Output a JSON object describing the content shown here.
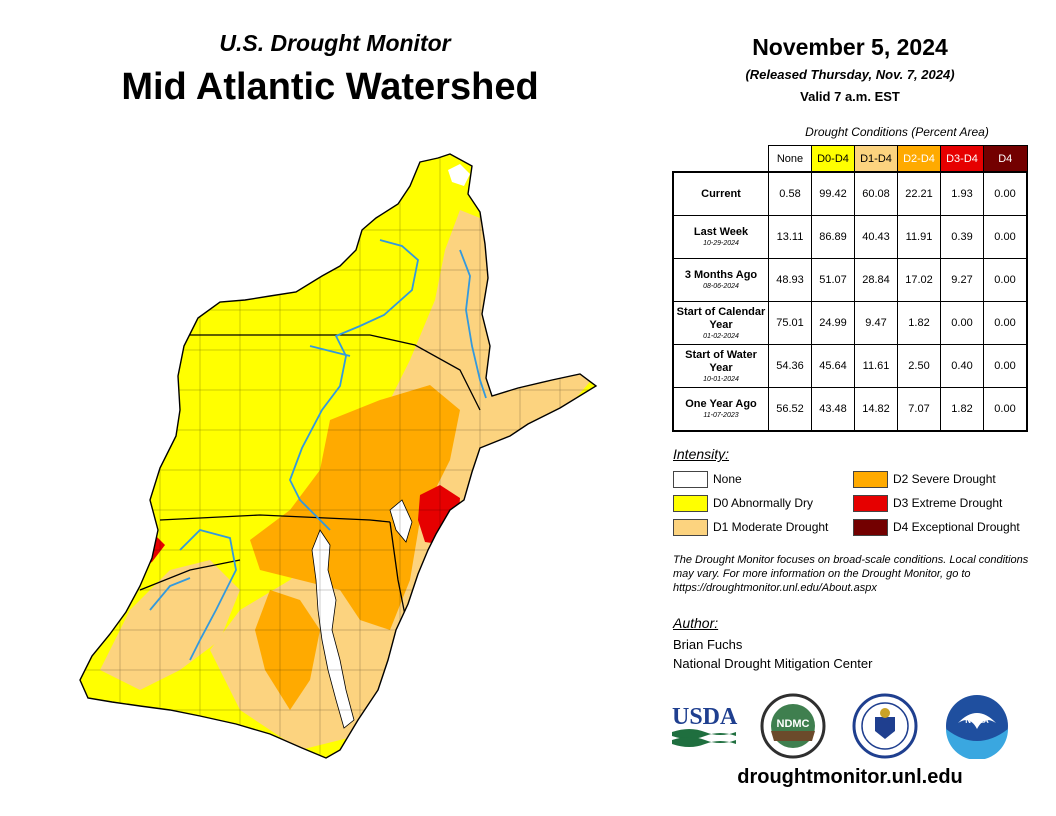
{
  "header": {
    "subtitle": "U.S. Drought Monitor",
    "title": "Mid Atlantic Watershed"
  },
  "date": "November 5, 2024",
  "released": "(Released Thursday, Nov. 7, 2024)",
  "valid": "Valid 7 a.m. EST",
  "conditions_caption": "Drought Conditions (Percent Area)",
  "columns": [
    {
      "label": "None",
      "bg": "#ffffff",
      "fg": "#000000"
    },
    {
      "label": "D0-D4",
      "bg": "#ffff00",
      "fg": "#000000"
    },
    {
      "label": "D1-D4",
      "bg": "#fcd37f",
      "fg": "#000000"
    },
    {
      "label": "D2-D4",
      "bg": "#ffaa00",
      "fg": "#ffffff"
    },
    {
      "label": "D3-D4",
      "bg": "#e60000",
      "fg": "#ffffff"
    },
    {
      "label": "D4",
      "bg": "#730000",
      "fg": "#ffffff"
    }
  ],
  "rows": [
    {
      "label": "Current",
      "date": "",
      "values": [
        "0.58",
        "99.42",
        "60.08",
        "22.21",
        "1.93",
        "0.00"
      ]
    },
    {
      "label": "Last Week",
      "date": "10-29-2024",
      "values": [
        "13.11",
        "86.89",
        "40.43",
        "11.91",
        "0.39",
        "0.00"
      ]
    },
    {
      "label": "3 Months Ago",
      "date": "08-06-2024",
      "values": [
        "48.93",
        "51.07",
        "28.84",
        "17.02",
        "9.27",
        "0.00"
      ]
    },
    {
      "label": "Start of Calendar Year",
      "date": "01-02-2024",
      "values": [
        "75.01",
        "24.99",
        "9.47",
        "1.82",
        "0.00",
        "0.00"
      ]
    },
    {
      "label": "Start of Water Year",
      "date": "10-01-2024",
      "values": [
        "54.36",
        "45.64",
        "11.61",
        "2.50",
        "0.40",
        "0.00"
      ]
    },
    {
      "label": "One Year Ago",
      "date": "11-07-2023",
      "values": [
        "56.52",
        "43.48",
        "14.82",
        "7.07",
        "1.82",
        "0.00"
      ]
    }
  ],
  "intensity": {
    "heading": "Intensity:",
    "items": [
      {
        "label": "None",
        "color": "#ffffff"
      },
      {
        "label": "D0 Abnormally Dry",
        "color": "#ffff00"
      },
      {
        "label": "D1 Moderate Drought",
        "color": "#fcd37f"
      },
      {
        "label": "D2 Severe Drought",
        "color": "#ffaa00"
      },
      {
        "label": "D3 Extreme Drought",
        "color": "#e60000"
      },
      {
        "label": "D4 Exceptional Drought",
        "color": "#730000"
      }
    ]
  },
  "note": "The Drought Monitor focuses on broad-scale conditions. Local conditions may vary. For more information on the Drought Monitor, go to https://droughtmonitor.unl.edu/About.aspx",
  "author": {
    "heading": "Author:",
    "name": "Brian Fuchs",
    "org": "National Drought Mitigation Center"
  },
  "logos": {
    "usda": "USDA",
    "ndmc": "NDMC",
    "noaa": "NOAA"
  },
  "url": "droughtmonitor.unl.edu"
}
